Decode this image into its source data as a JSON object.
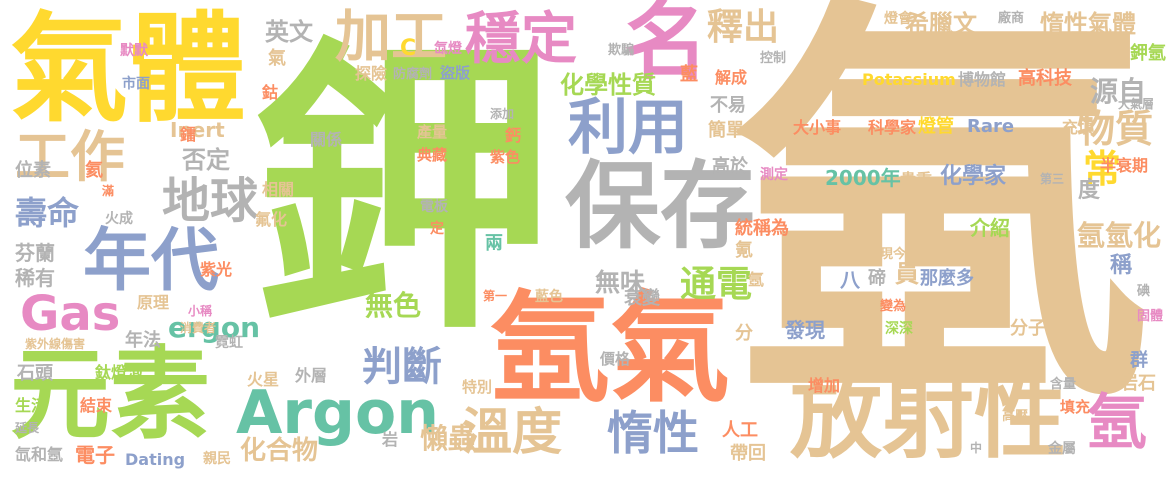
{
  "palette": {
    "gold": "#e5c494",
    "green": "#a6d854",
    "orange": "#fc8d62",
    "blue": "#8da0cb",
    "yellow": "#ffd92f",
    "teal": "#66c2a5",
    "pink": "#e78ac3",
    "gray": "#b3b3b3"
  },
  "words": [
    {
      "t": "氬"
    },
    {
      "t": "鉀"
    },
    {
      "t": "氣體"
    },
    {
      "t": "氬氣"
    },
    {
      "t": "放射性"
    },
    {
      "t": "保存"
    },
    {
      "t": "元素"
    },
    {
      "t": "Argon"
    },
    {
      "t": "年代"
    },
    {
      "t": "穩定"
    },
    {
      "t": "加工"
    },
    {
      "t": "名"
    },
    {
      "t": "工作"
    },
    {
      "t": "利用"
    },
    {
      "t": "地球"
    },
    {
      "t": "Gas"
    },
    {
      "t": "溫度"
    },
    {
      "t": "氬"
    },
    {
      "t": "惰性"
    },
    {
      "t": "判斷"
    },
    {
      "t": "釋出"
    },
    {
      "t": "物質"
    },
    {
      "t": "壽命"
    },
    {
      "t": "惰性氣體"
    },
    {
      "t": "希臘文"
    },
    {
      "t": "英文"
    },
    {
      "t": "源自"
    },
    {
      "t": "常"
    },
    {
      "t": "通電"
    },
    {
      "t": "ergon"
    },
    {
      "t": "無色"
    },
    {
      "t": "無味"
    },
    {
      "t": "化學性質"
    },
    {
      "t": "懶蟲"
    },
    {
      "t": "否定"
    },
    {
      "t": "氬氫化"
    },
    {
      "t": "化合物"
    },
    {
      "t": "Potassium"
    },
    {
      "t": "博物館"
    },
    {
      "t": "高科技"
    },
    {
      "t": "2000年"
    },
    {
      "t": "貴重"
    },
    {
      "t": "化學家"
    },
    {
      "t": "大小事"
    },
    {
      "t": "科學家"
    },
    {
      "t": "燈管"
    },
    {
      "t": "Rare"
    },
    {
      "t": "Inert"
    },
    {
      "t": "Dating"
    },
    {
      "t": "親民"
    },
    {
      "t": "電子"
    },
    {
      "t": "氙和氬"
    },
    {
      "t": "結束"
    },
    {
      "t": "生活"
    },
    {
      "t": "石頭"
    },
    {
      "t": "鈦燈泡"
    },
    {
      "t": "年法"
    },
    {
      "t": "原理"
    },
    {
      "t": "芬蘭"
    },
    {
      "t": "稀有"
    },
    {
      "t": "位素"
    },
    {
      "t": "氦"
    },
    {
      "t": "鐳"
    },
    {
      "t": "鈷"
    },
    {
      "t": "市面"
    },
    {
      "t": "默默"
    },
    {
      "t": "探險"
    },
    {
      "t": "防腐劑"
    },
    {
      "t": "盜版"
    },
    {
      "t": "C"
    },
    {
      "t": "氙燈"
    },
    {
      "t": "欺騙"
    },
    {
      "t": "燈會"
    },
    {
      "t": "廠商"
    },
    {
      "t": "控制"
    },
    {
      "t": "鉀氬"
    },
    {
      "t": "藍"
    },
    {
      "t": "解成"
    },
    {
      "t": "不易"
    },
    {
      "t": "簡單"
    },
    {
      "t": "高於"
    },
    {
      "t": "測定"
    },
    {
      "t": "第三"
    },
    {
      "t": "半衰期"
    },
    {
      "t": "大氣層"
    },
    {
      "t": "充填"
    },
    {
      "t": "度"
    },
    {
      "t": "統稱為"
    },
    {
      "t": "介紹"
    },
    {
      "t": "稱"
    },
    {
      "t": "氪"
    },
    {
      "t": "員"
    },
    {
      "t": "那麼多"
    },
    {
      "t": "八"
    },
    {
      "t": "碲"
    },
    {
      "t": "現今"
    },
    {
      "t": "變為"
    },
    {
      "t": "深深"
    },
    {
      "t": "發現"
    },
    {
      "t": "分子"
    },
    {
      "t": "分"
    },
    {
      "t": "群"
    },
    {
      "t": "岩石"
    },
    {
      "t": "碘"
    },
    {
      "t": "固體"
    },
    {
      "t": "增加"
    },
    {
      "t": "含量"
    },
    {
      "t": "填充"
    },
    {
      "t": "高壓"
    },
    {
      "t": "金屬"
    },
    {
      "t": "中"
    },
    {
      "t": "帶回"
    },
    {
      "t": "人工"
    },
    {
      "t": "價格"
    },
    {
      "t": "特別"
    },
    {
      "t": "衰變"
    },
    {
      "t": "藍色"
    },
    {
      "t": "第一"
    },
    {
      "t": "兩"
    },
    {
      "t": "成"
    },
    {
      "t": "電板"
    },
    {
      "t": "定"
    },
    {
      "t": "產量"
    },
    {
      "t": "典藏"
    },
    {
      "t": "鈣"
    },
    {
      "t": "紫色"
    },
    {
      "t": "添加"
    },
    {
      "t": "關係"
    },
    {
      "t": "相關"
    },
    {
      "t": "氟化"
    },
    {
      "t": "火成"
    },
    {
      "t": "紫光"
    },
    {
      "t": "小稱"
    },
    {
      "t": "消費者"
    },
    {
      "t": "霓虹"
    },
    {
      "t": "紫外線傷害"
    },
    {
      "t": "火星"
    },
    {
      "t": "外層"
    },
    {
      "t": "岩"
    },
    {
      "t": "延長"
    },
    {
      "t": "氣"
    },
    {
      "t": "滿"
    },
    {
      "t": "氬"
    }
  ]
}
